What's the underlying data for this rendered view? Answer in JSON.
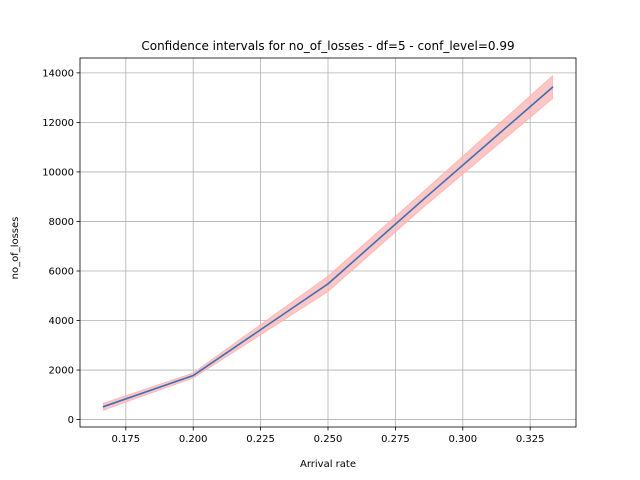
{
  "chart_data": {
    "type": "line",
    "title": "Confidence intervals for no_of_losses - df=5 - conf_level=0.99",
    "xlabel": "Arrival rate",
    "ylabel": "no_of_losses",
    "xlim": [
      0.158,
      0.342
    ],
    "ylim": [
      -300,
      14600
    ],
    "grid": true,
    "xticks": [
      0.175,
      0.2,
      0.225,
      0.25,
      0.275,
      0.3,
      0.325
    ],
    "xtick_labels": [
      "0.175",
      "0.200",
      "0.225",
      "0.250",
      "0.275",
      "0.300",
      "0.325"
    ],
    "yticks": [
      0,
      2000,
      4000,
      6000,
      8000,
      10000,
      12000,
      14000
    ],
    "ytick_labels": [
      "0",
      "2000",
      "4000",
      "6000",
      "8000",
      "10000",
      "12000",
      "14000"
    ],
    "series": [
      {
        "x": [
          0.1667,
          0.2,
          0.25,
          0.2857,
          0.3333
        ],
        "values": [
          520,
          1780,
          5480,
          8920,
          13420
        ],
        "lower": [
          380,
          1680,
          5170,
          8600,
          12960
        ],
        "upper": [
          660,
          1880,
          5790,
          9240,
          13880
        ],
        "color": "#3a6fb5",
        "band_color": "#ffb3b3"
      }
    ]
  }
}
